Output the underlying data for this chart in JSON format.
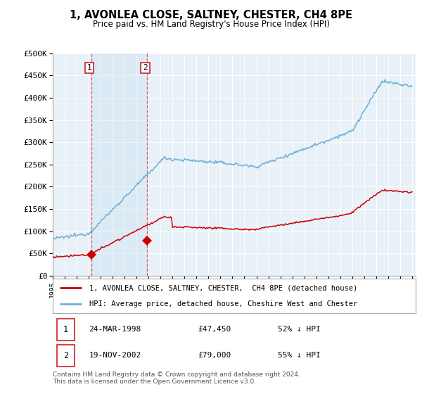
{
  "title": "1, AVONLEA CLOSE, SALTNEY, CHESTER, CH4 8PE",
  "subtitle": "Price paid vs. HM Land Registry's House Price Index (HPI)",
  "legend_line1": "1, AVONLEA CLOSE, SALTNEY, CHESTER,  CH4 8PE (detached house)",
  "legend_line2": "HPI: Average price, detached house, Cheshire West and Chester",
  "sale1_label": "1",
  "sale1_date": "24-MAR-1998",
  "sale1_price": "£47,450",
  "sale1_hpi": "52% ↓ HPI",
  "sale2_label": "2",
  "sale2_date": "19-NOV-2002",
  "sale2_price": "£79,000",
  "sale2_hpi": "55% ↓ HPI",
  "footer": "Contains HM Land Registry data © Crown copyright and database right 2024.\nThis data is licensed under the Open Government Licence v3.0.",
  "hpi_color": "#6ab0d8",
  "property_color": "#cc0000",
  "sale1_year": 1998.22,
  "sale2_year": 2002.88,
  "sale1_price_val": 47450,
  "sale2_price_val": 79000,
  "ylim": [
    0,
    500000
  ],
  "yticks": [
    0,
    50000,
    100000,
    150000,
    200000,
    250000,
    300000,
    350000,
    400000,
    450000,
    500000
  ],
  "ylabel_fmt": [
    "£0",
    "£50K",
    "£100K",
    "£150K",
    "£200K",
    "£250K",
    "£300K",
    "£350K",
    "£400K",
    "£450K",
    "£500K"
  ],
  "background_color": "#ffffff"
}
